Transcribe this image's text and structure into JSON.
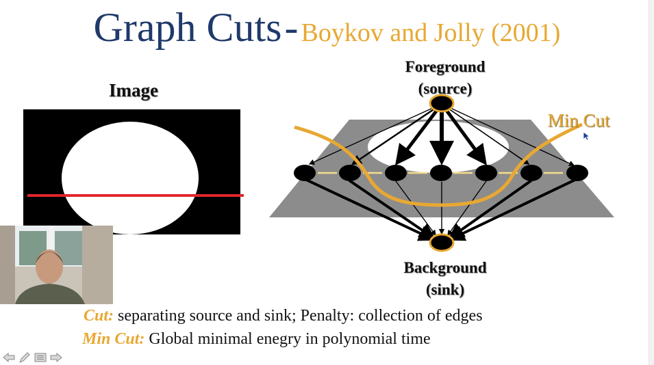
{
  "title": {
    "main": "Graph Cuts",
    "separator": "-",
    "sub": "Boykov and Jolly (2001)"
  },
  "image_panel": {
    "label": "Image"
  },
  "graph": {
    "foreground_line1": "Foreground",
    "foreground_line2": "(source)",
    "background_line1": "Background",
    "background_line2": "(sink)",
    "min_cut": "Min Cut"
  },
  "captions": {
    "cut_key": "Cut:",
    "cut_text": " separating source and sink; Penalty: collection of edges",
    "mincut_key": "Min Cut:",
    "mincut_text": " Global minimal enegry in polynomial time"
  },
  "controls": {
    "icons": [
      "previous-arrow-icon",
      "pen-icon",
      "menu-icon",
      "next-arrow-icon"
    ]
  },
  "colors": {
    "title_blue": "#1f3a6b",
    "accent_gold": "#e8a832",
    "red_line": "#e0262b"
  }
}
